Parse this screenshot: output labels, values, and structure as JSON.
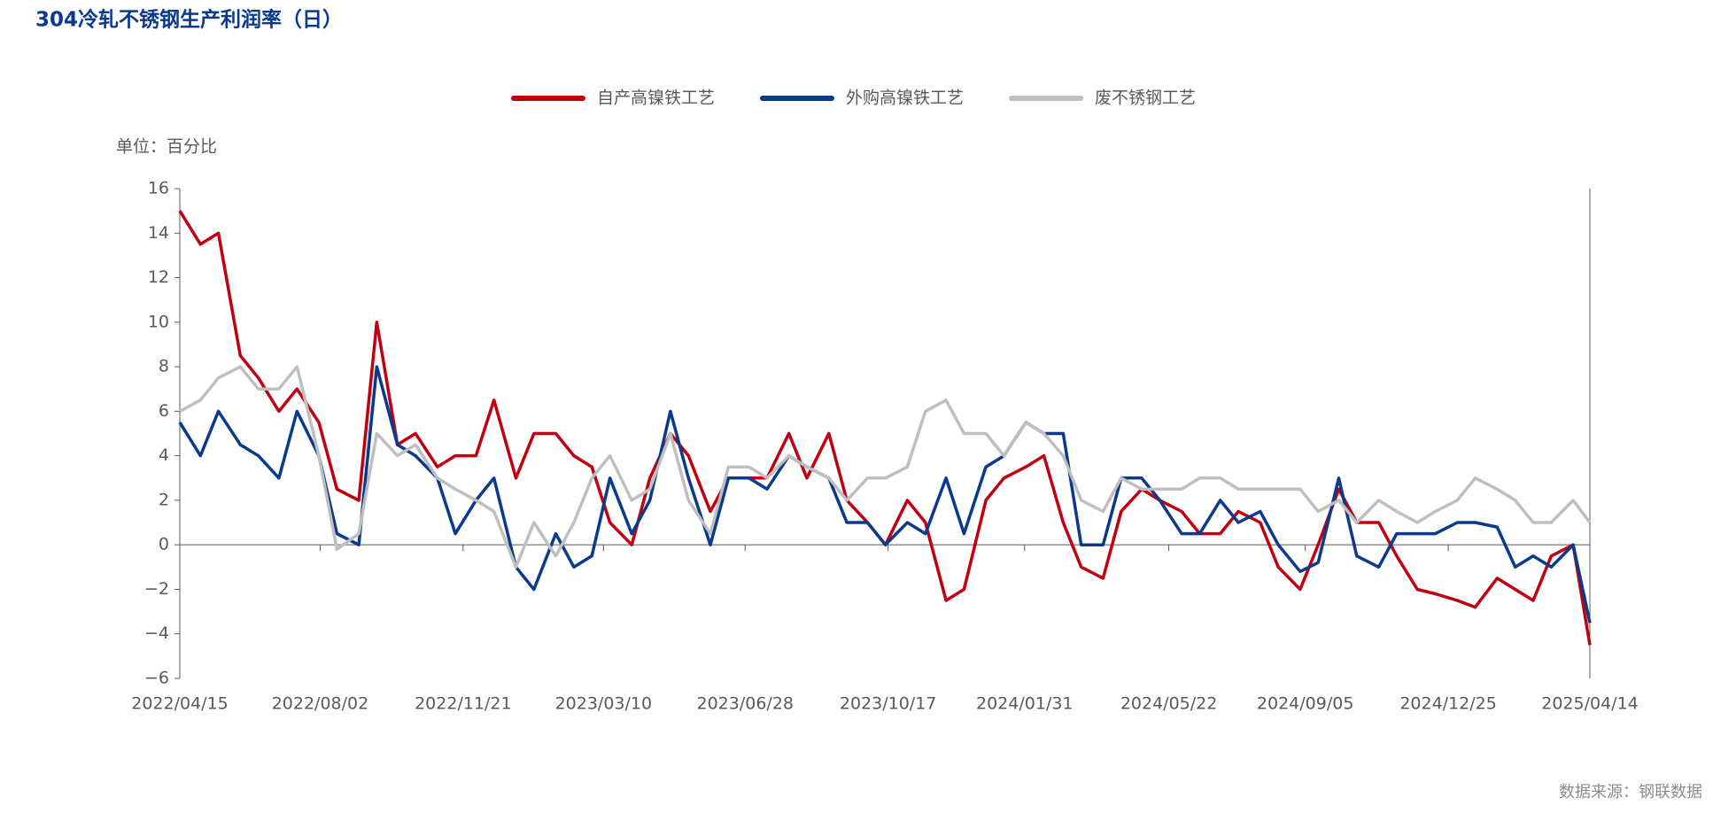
{
  "chart_data": {
    "type": "line",
    "title": "304冷轧不锈钢生产利润率（日）",
    "y_label": "单位：百分比",
    "source": "数据来源：钢联数据",
    "x": [
      "2022/04/15",
      "2022/05/01",
      "2022/05/15",
      "2022/06/01",
      "2022/06/15",
      "2022/07/01",
      "2022/07/15",
      "2022/08/01",
      "2022/08/15",
      "2022/09/01",
      "2022/09/15",
      "2022/10/01",
      "2022/10/15",
      "2022/11/01",
      "2022/11/15",
      "2022/12/01",
      "2022/12/15",
      "2023/01/01",
      "2023/01/15",
      "2023/02/01",
      "2023/02/15",
      "2023/03/01",
      "2023/03/15",
      "2023/04/01",
      "2023/04/15",
      "2023/05/01",
      "2023/05/15",
      "2023/06/01",
      "2023/06/15",
      "2023/07/01",
      "2023/07/15",
      "2023/08/01",
      "2023/08/15",
      "2023/09/01",
      "2023/09/15",
      "2023/10/01",
      "2023/10/15",
      "2023/11/01",
      "2023/11/15",
      "2023/12/01",
      "2023/12/15",
      "2024/01/01",
      "2024/01/15",
      "2024/02/01",
      "2024/02/15",
      "2024/03/01",
      "2024/03/15",
      "2024/04/01",
      "2024/04/15",
      "2024/05/01",
      "2024/05/15",
      "2024/06/01",
      "2024/06/15",
      "2024/07/01",
      "2024/07/15",
      "2024/08/01",
      "2024/08/15",
      "2024/09/01",
      "2024/09/15",
      "2024/10/01",
      "2024/10/15",
      "2024/11/01",
      "2024/11/15",
      "2024/12/01",
      "2024/12/15",
      "2025/01/01",
      "2025/01/15",
      "2025/02/01",
      "2025/02/15",
      "2025/03/01",
      "2025/03/15",
      "2025/04/01",
      "2025/04/14"
    ],
    "series": [
      {
        "name": "自产高镍铁工艺",
        "color": "#c00010",
        "values": [
          15,
          13.5,
          14,
          8.5,
          7.5,
          6,
          7,
          5.5,
          2.5,
          2,
          10,
          4.5,
          5,
          3.5,
          4,
          4,
          6.5,
          3,
          5,
          5,
          4,
          3.5,
          1,
          0,
          3,
          5,
          4,
          1.5,
          3,
          3,
          3,
          5,
          3,
          5,
          2,
          1,
          0,
          2,
          1,
          -2.5,
          -2,
          2,
          3,
          3.5,
          4,
          1,
          -1,
          -1.5,
          1.5,
          2.5,
          2,
          1.5,
          0.5,
          0.5,
          1.5,
          1,
          -1,
          -2,
          0,
          2.5,
          1,
          1,
          -0.5,
          -2,
          -2.2,
          -2.5,
          -2.8,
          -1.5,
          -2,
          -2.5,
          -0.5,
          0,
          -4.5
        ]
      },
      {
        "name": "外购高镍铁工艺",
        "color": "#0a3a8c",
        "values": [
          5.5,
          4,
          6,
          4.5,
          4,
          3,
          6,
          4,
          0.5,
          0,
          8,
          4.5,
          4,
          3,
          0.5,
          2,
          3,
          -1,
          -2,
          0.5,
          -1,
          -0.5,
          3,
          0.5,
          2,
          6,
          3,
          0,
          3,
          3,
          2.5,
          4,
          3.5,
          3,
          1,
          1,
          0,
          1,
          0.5,
          3,
          0.5,
          3.5,
          4,
          5.5,
          5,
          5,
          0,
          0,
          3,
          3,
          2,
          0.5,
          0.5,
          2,
          1,
          1.5,
          0,
          -1.2,
          -0.8,
          3,
          -0.5,
          -1,
          0.5,
          0.5,
          0.5,
          1,
          1,
          0.8,
          -1,
          -0.5,
          -1,
          0,
          -3.5
        ]
      },
      {
        "name": "废不锈钢工艺",
        "color": "#bfbfbf",
        "values": [
          6,
          6.5,
          7.5,
          8,
          7,
          7,
          8,
          4,
          -0.2,
          0.5,
          5,
          4,
          4.5,
          3,
          2.5,
          2,
          1.5,
          -1,
          1,
          -0.5,
          1,
          3,
          4,
          2,
          2.5,
          5,
          2,
          0.5,
          3.5,
          3.5,
          3,
          4,
          3.5,
          3,
          2,
          3,
          3,
          3.5,
          6,
          6.5,
          5,
          5,
          4,
          5.5,
          5,
          4,
          2,
          1.5,
          3,
          2.5,
          2.5,
          2.5,
          3,
          3,
          2.5,
          2.5,
          2.5,
          2.5,
          1.5,
          2,
          1,
          2,
          1.5,
          1,
          1.5,
          2,
          3,
          2.5,
          2,
          1,
          1,
          2,
          1
        ]
      }
    ],
    "xlim": [
      "2022/04/15",
      "2025/04/14"
    ],
    "xticks": [
      "2022/04/15",
      "2022/08/02",
      "2022/11/21",
      "2023/03/10",
      "2023/06/28",
      "2023/10/17",
      "2024/01/31",
      "2024/05/22",
      "2024/09/05",
      "2024/12/25",
      "2025/04/14"
    ],
    "ylim": [
      -6,
      16
    ],
    "yticks": [
      {
        "value": -6,
        "label": "−6"
      },
      {
        "value": -4,
        "label": "−4"
      },
      {
        "value": -2,
        "label": "−2"
      },
      0,
      2,
      4,
      6,
      8,
      10,
      12,
      14,
      16
    ]
  }
}
